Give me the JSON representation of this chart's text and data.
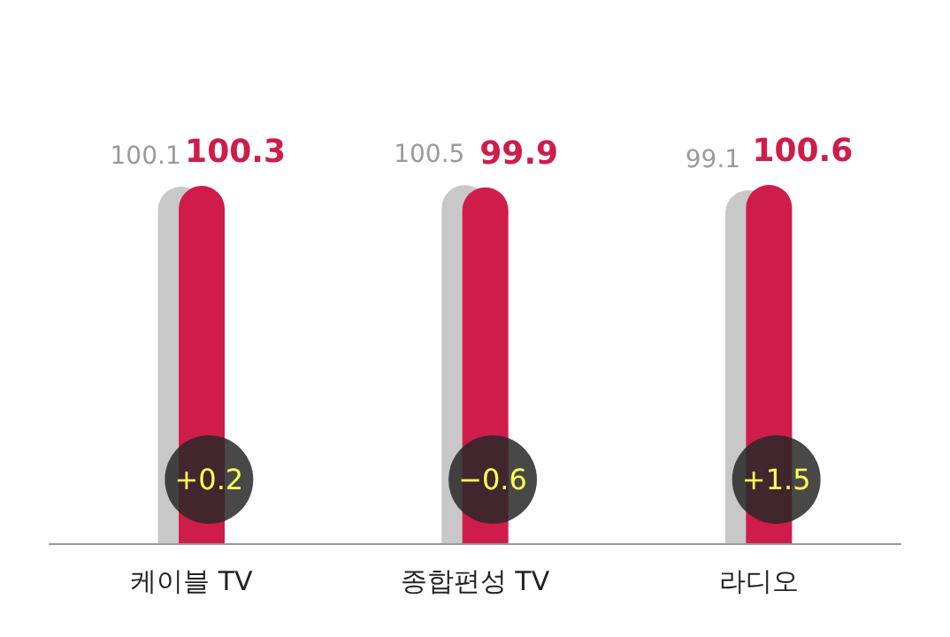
{
  "chart_data": {
    "type": "bar",
    "categories": [
      "케이블 TV",
      "종합편성 TV",
      "라디오"
    ],
    "series": [
      {
        "color": "#c8c8c8",
        "values": [
          100.1,
          100.5,
          99.1
        ]
      },
      {
        "color": "#d01c4a",
        "values": [
          100.3,
          99.9,
          100.6
        ]
      }
    ],
    "data_labels": true,
    "grid": false,
    "annotations": [
      "+0.2",
      "−0.6",
      "+1.5"
    ]
  }
}
